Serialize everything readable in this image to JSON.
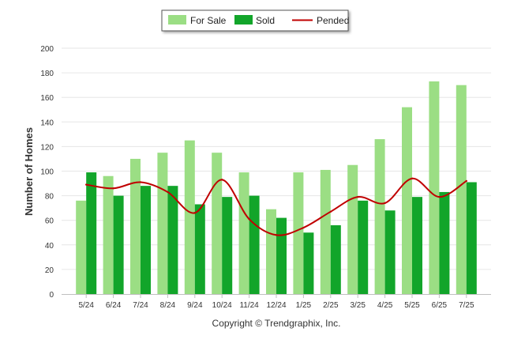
{
  "chart_data": {
    "type": "bar",
    "ylabel": "Number of Homes",
    "ylim": [
      0,
      200
    ],
    "yticks": [
      0,
      20,
      40,
      60,
      80,
      100,
      120,
      140,
      160,
      180,
      200
    ],
    "grid": true,
    "legend_placement": "top-center",
    "categories": [
      "5/24",
      "6/24",
      "7/24",
      "8/24",
      "9/24",
      "10/24",
      "11/24",
      "12/24",
      "1/25",
      "2/25",
      "3/25",
      "4/25",
      "5/25",
      "6/25",
      "7/25"
    ],
    "series": [
      {
        "name": "For Sale",
        "type": "bar",
        "color": "#9bde84",
        "values": [
          76,
          96,
          110,
          115,
          125,
          115,
          99,
          69,
          99,
          101,
          105,
          126,
          152,
          173,
          170
        ]
      },
      {
        "name": "Sold",
        "type": "bar",
        "color": "#12a52a",
        "values": [
          99,
          80,
          88,
          88,
          73,
          79,
          80,
          62,
          50,
          56,
          76,
          68,
          79,
          83,
          91
        ]
      },
      {
        "name": "Pended",
        "type": "line",
        "color": "#c00000",
        "values": [
          89,
          86,
          91,
          83,
          66,
          93,
          61,
          48,
          54,
          67,
          79,
          74,
          94,
          79,
          92
        ]
      }
    ]
  },
  "footer": {
    "copyright": "Copyright © Trendgraphix, Inc."
  }
}
